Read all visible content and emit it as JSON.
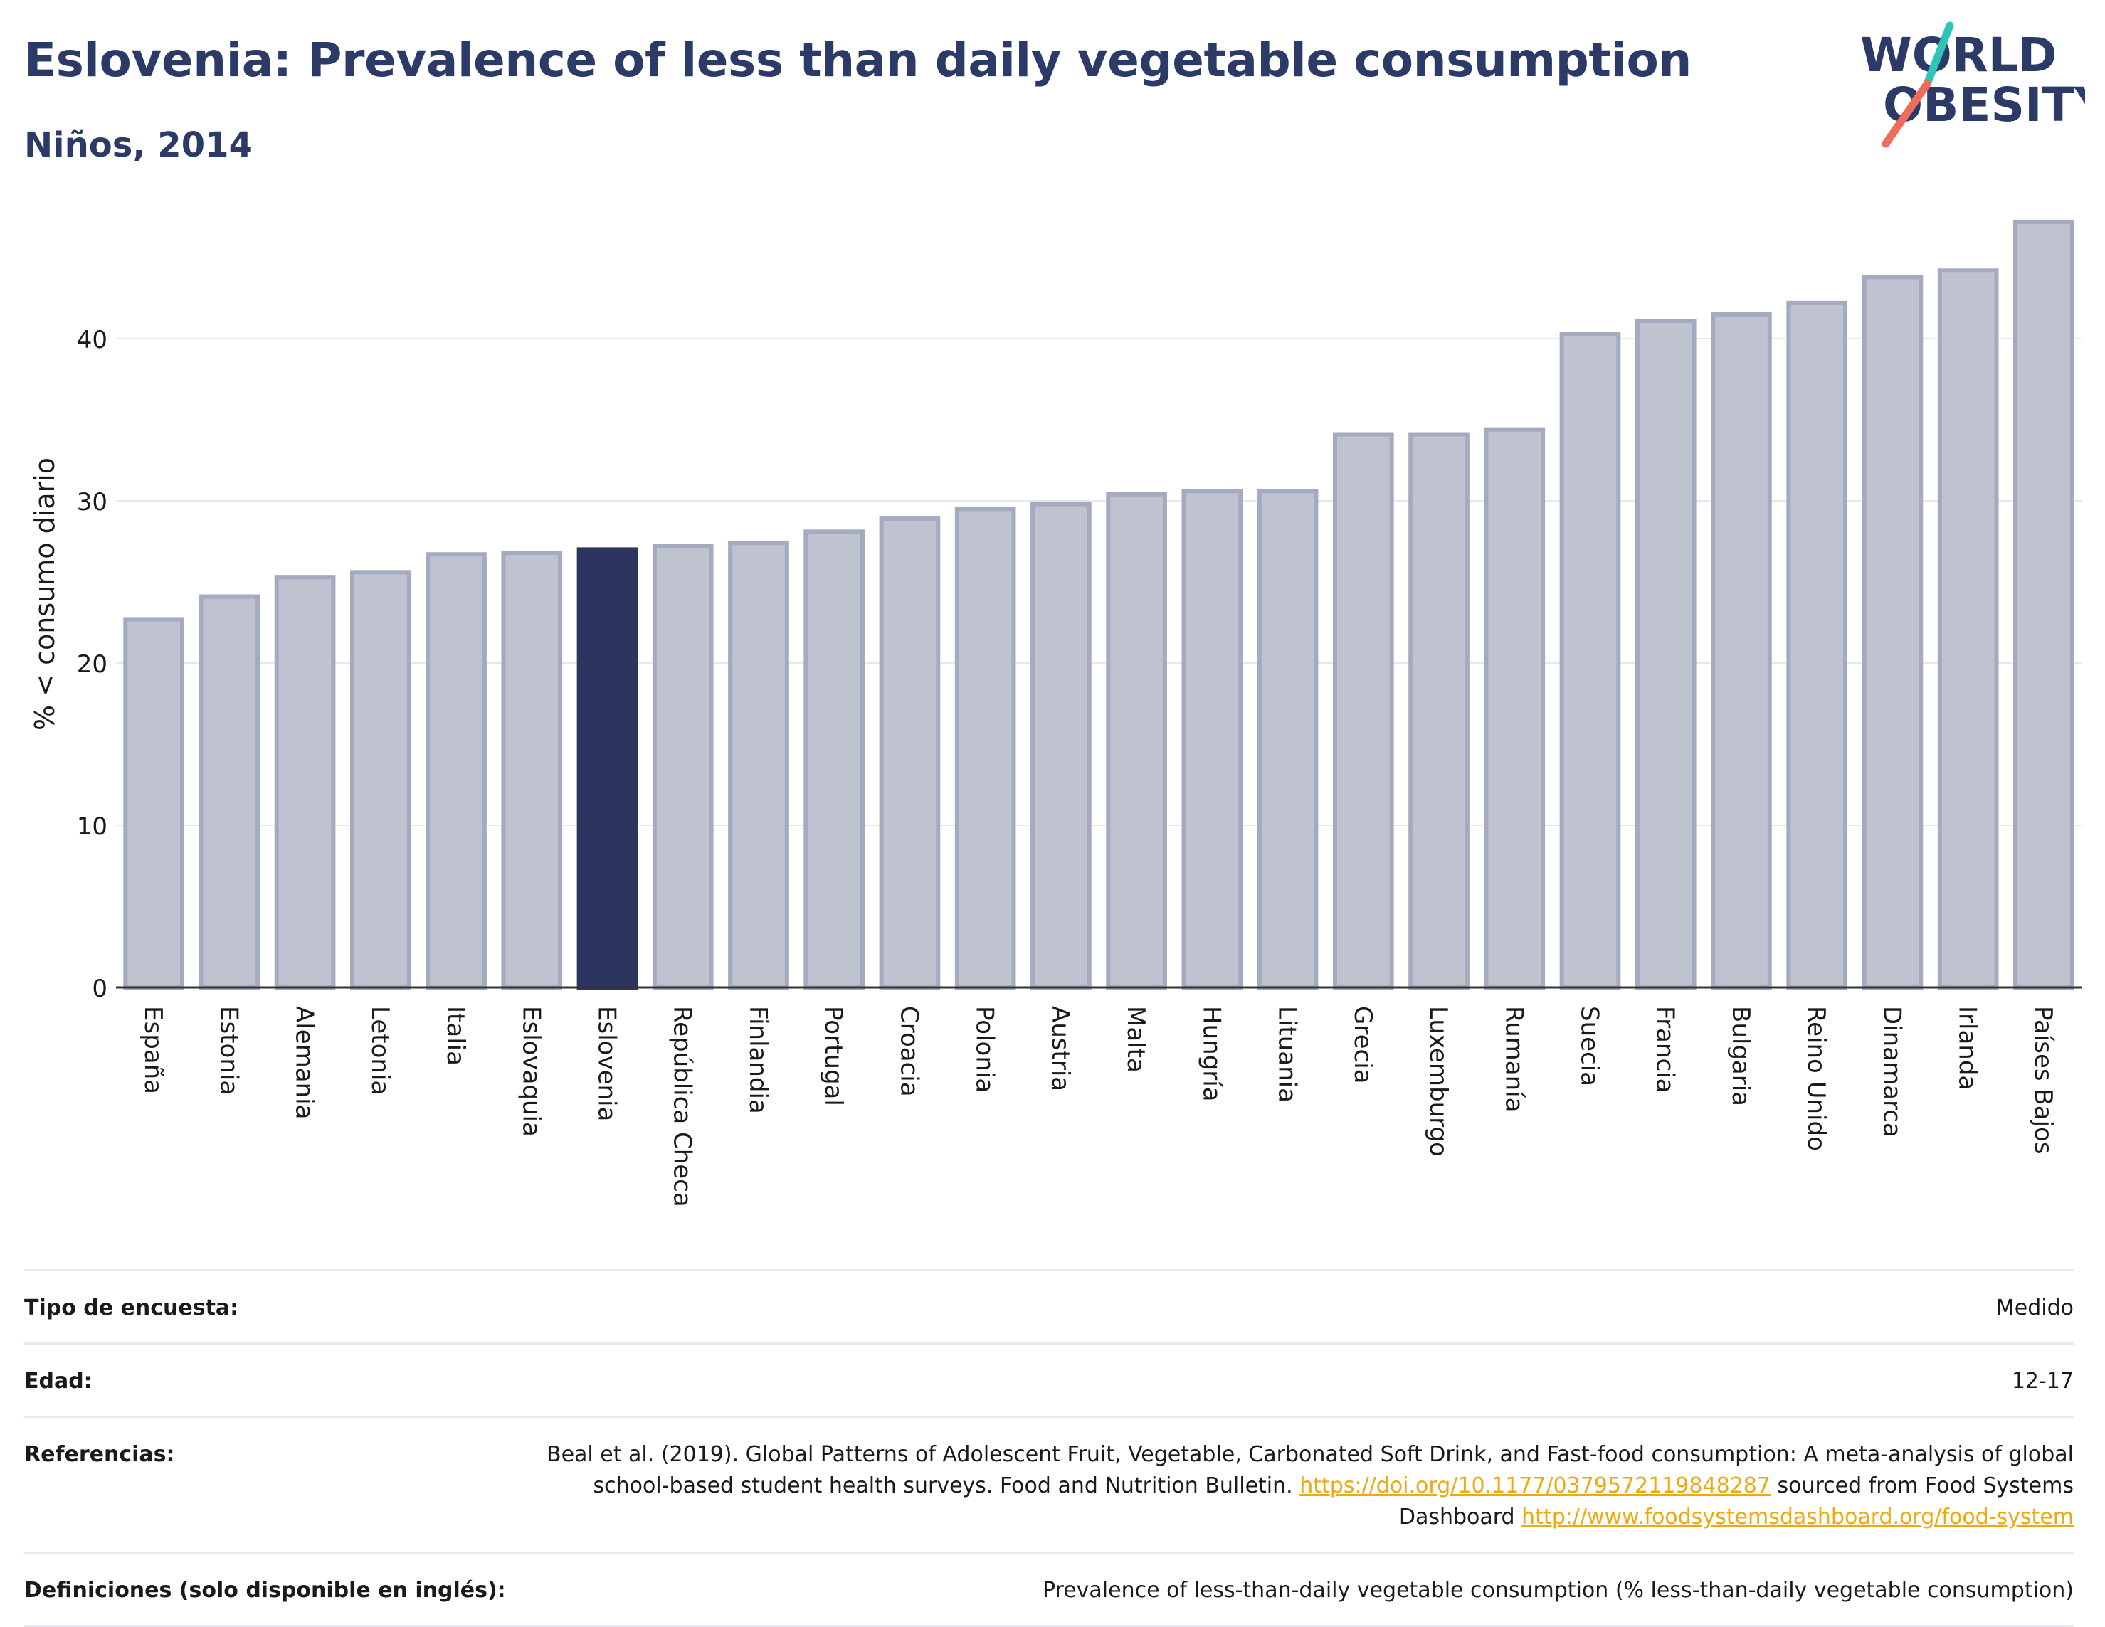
{
  "header": {
    "title": "Eslovenia: Prevalence of less than daily vegetable consumption",
    "subtitle": "Niños, 2014"
  },
  "logo": {
    "line1": "WORLD",
    "line2": "OBESITY",
    "icon": "world-obesity-logo"
  },
  "chart_data": {
    "type": "bar",
    "ylabel": "% < consumo diario",
    "xlabel": "",
    "ylim": [
      0,
      50
    ],
    "yticks": [
      0,
      10,
      20,
      30,
      40
    ],
    "grid": true,
    "highlight": "Eslovenia",
    "categories": [
      "España",
      "Estonia",
      "Alemania",
      "Letonia",
      "Italia",
      "Eslovaquia",
      "Eslovenia",
      "República Checa",
      "Finlandia",
      "Portugal",
      "Croacia",
      "Polonia",
      "Austria",
      "Malta",
      "Hungría",
      "Lituania",
      "Grecia",
      "Luxemburgo",
      "Rumanía",
      "Suecia",
      "Francia",
      "Bulgaria",
      "Reino Unido",
      "Dinamarca",
      "Irlanda",
      "Países Bajos"
    ],
    "values": [
      22.7,
      24.1,
      25.3,
      25.6,
      26.7,
      26.8,
      27.0,
      27.2,
      27.4,
      28.1,
      28.9,
      29.5,
      29.8,
      30.4,
      30.6,
      30.6,
      34.1,
      34.1,
      34.4,
      40.3,
      41.1,
      41.5,
      42.2,
      43.8,
      44.2,
      47.2
    ],
    "colors": {
      "bar": "#bfc2cf",
      "bar_edge": "#a4aac0",
      "highlight": "#2b3560",
      "grid": "#e6e8ef",
      "axis": "#333333"
    }
  },
  "info": {
    "survey_label": "Tipo de encuesta:",
    "survey_value": "Medido",
    "age_label": "Edad:",
    "age_value": "12-17",
    "refs_label": "Referencias:",
    "refs_text1": "Beal et al. (2019). Global Patterns of Adolescent Fruit, Vegetable, Carbonated Soft Drink, and Fast-food consumption: A meta-analysis of global school-based student health surveys. Food and Nutrition Bulletin.",
    "refs_link1": "https://doi.org/10.1177/0379572119848287",
    "refs_text2": "sourced from Food Systems Dashboard",
    "refs_link2": "http://www.foodsystemsdashboard.org/food-system",
    "defs_label": "Definiciones (solo disponible en inglés):",
    "defs_value": "Prevalence of less-than-daily vegetable consumption (% less-than-daily vegetable consumption)"
  }
}
